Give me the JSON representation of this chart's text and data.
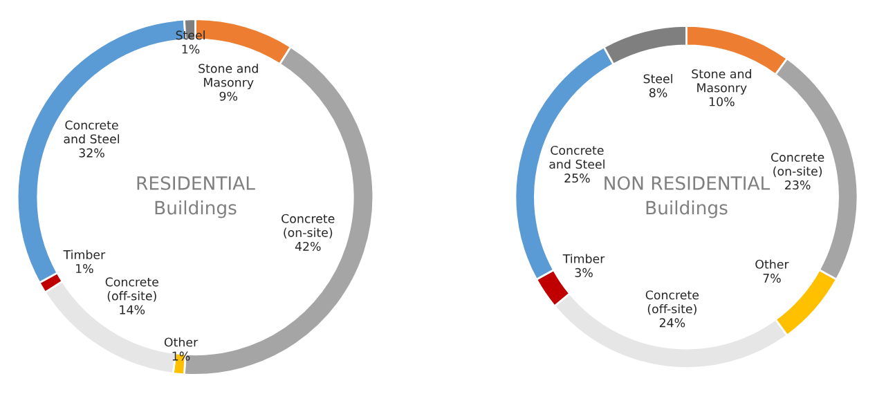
{
  "chart_data": [
    {
      "type": "donut",
      "annotations": [
        "RESIDENTIAL\nBuildings"
      ],
      "categories": [
        "Stone and\nMasonry",
        "Concrete\n(on-site)",
        "Other",
        "Concrete\n(off-site)",
        "Timber",
        "Concrete\nand Steel",
        "Steel"
      ],
      "values": [
        9,
        42,
        1,
        14,
        1,
        32,
        1
      ],
      "value_labels": [
        "9%",
        "42%",
        "1%",
        "14%",
        "1%",
        "32%",
        "1%"
      ],
      "colors": [
        "#ed7d31",
        "#a5a5a5",
        "#ffc000",
        "#e7e6e6",
        "#c00000",
        "#5b9bd5",
        "#7f7f7f"
      ]
    },
    {
      "type": "donut",
      "annotations": [
        "NON RESIDENTIAL\nBuildings"
      ],
      "categories": [
        "Stone and\nMasonry",
        "Concrete\n(on-site)",
        "Other",
        "Concrete\n(off-site)",
        "Timber",
        "Concrete\nand Steel",
        "Steel"
      ],
      "values": [
        10,
        23,
        7,
        24,
        3,
        25,
        8
      ],
      "value_labels": [
        "10%",
        "23%",
        "7%",
        "24%",
        "3%",
        "25%",
        "8%"
      ],
      "colors": [
        "#ed7d31",
        "#a5a5a5",
        "#ffc000",
        "#e7e6e6",
        "#c00000",
        "#5b9bd5",
        "#7f7f7f"
      ]
    }
  ]
}
